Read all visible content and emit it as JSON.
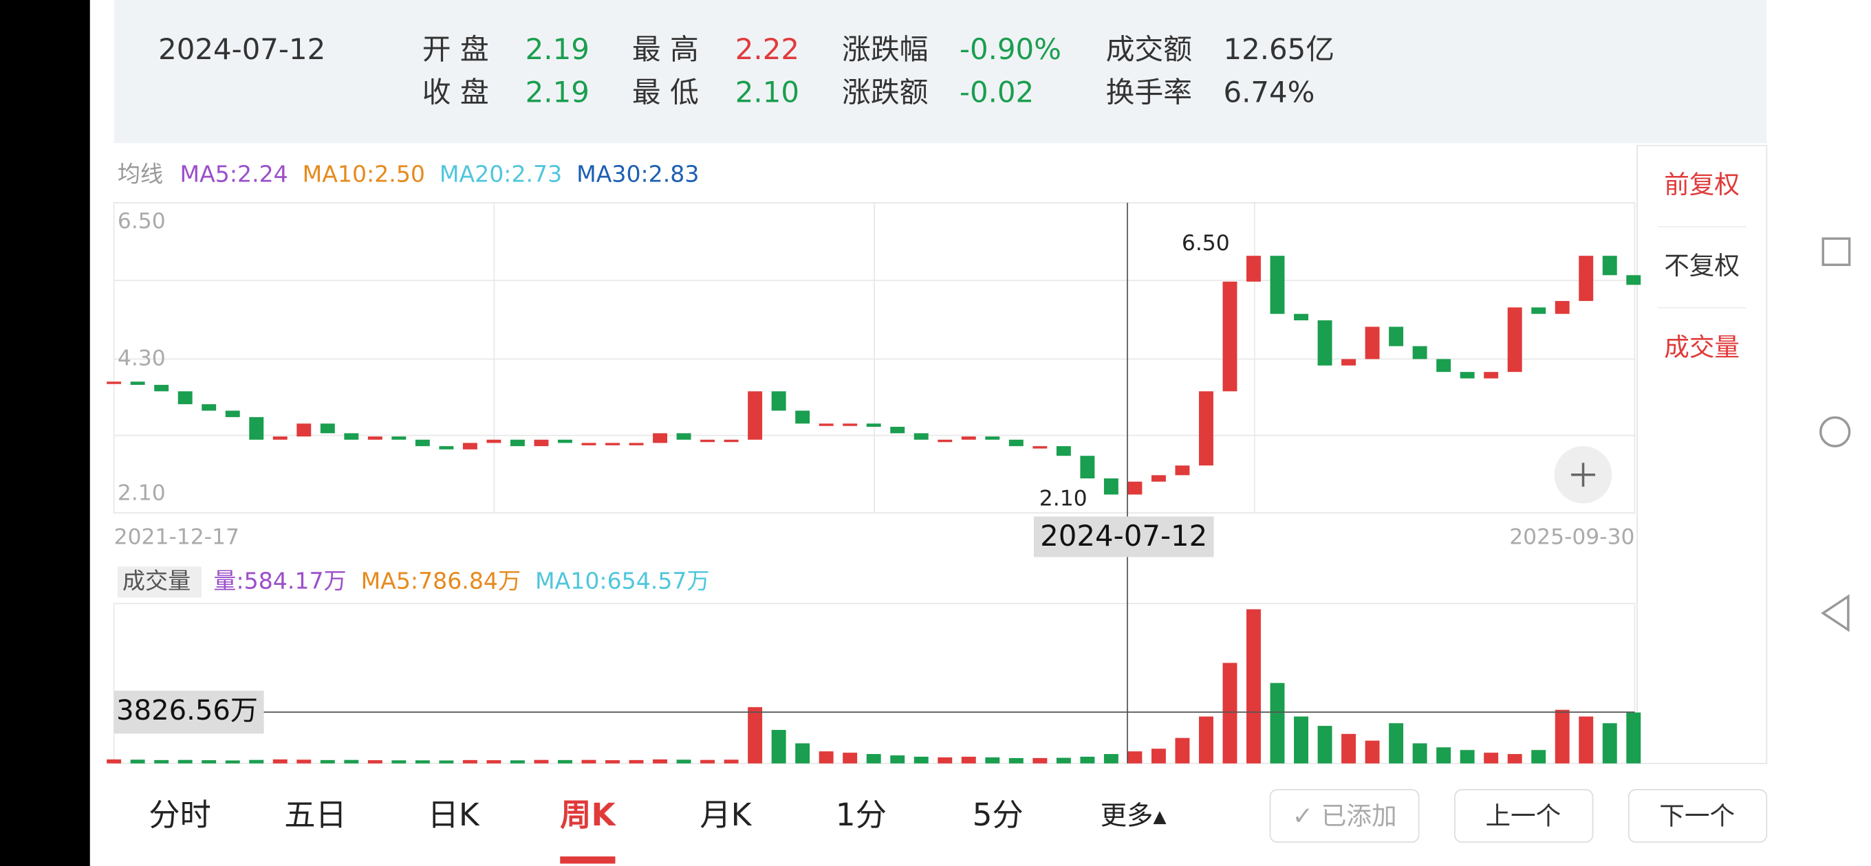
{
  "header": {
    "date": "2024-07-12",
    "stats": [
      {
        "label": "开 盘",
        "value": "2.19",
        "tone": "down"
      },
      {
        "label": "最 高",
        "value": "2.22",
        "tone": "up"
      },
      {
        "label": "涨跌幅",
        "value": "-0.90%",
        "tone": "down"
      },
      {
        "label": "成交额",
        "value": "12.65亿",
        "tone": "plain"
      },
      {
        "label": "收 盘",
        "value": "2.19",
        "tone": "down"
      },
      {
        "label": "最 低",
        "value": "2.10",
        "tone": "down"
      },
      {
        "label": "涨跌额",
        "value": "-0.02",
        "tone": "down"
      },
      {
        "label": "换手率",
        "value": "6.74%",
        "tone": "plain"
      }
    ]
  },
  "ma_legend": {
    "title": "均线",
    "items": [
      {
        "text": "MA5:2.24",
        "color": "#9b4fc9"
      },
      {
        "text": "MA10:2.50",
        "color": "#e68a1e"
      },
      {
        "text": "MA20:2.73",
        "color": "#4fc6dc"
      },
      {
        "text": "MA30:2.83",
        "color": "#1d5fb3"
      }
    ]
  },
  "vol_legend": {
    "title": "成交量",
    "items": [
      {
        "text": "量:584.17万",
        "color": "#9b4fc9"
      },
      {
        "text": "MA5:786.84万",
        "color": "#e68a1e"
      },
      {
        "text": "MA10:654.57万",
        "color": "#4fc6dc"
      }
    ]
  },
  "chart_data": {
    "type": "candlestick",
    "ylim": [
      2.1,
      6.5
    ],
    "yticks": [
      {
        "value": 6.5,
        "label": "6.50"
      },
      {
        "value": 4.3,
        "label": "4.30"
      },
      {
        "value": 2.1,
        "label": "2.10"
      }
    ],
    "high_label": "6.50",
    "low_label": "2.10",
    "start_date": "2021-12-17",
    "end_date": "2025-09-30",
    "crosshair_date": "2024-07-12",
    "up_color": "#e03a3a",
    "down_color": "#1a9e4f",
    "closes": [
      3.95,
      3.9,
      3.8,
      3.6,
      3.5,
      3.4,
      3.05,
      3.1,
      3.3,
      3.15,
      3.05,
      3.1,
      3.05,
      2.95,
      2.9,
      3.0,
      3.05,
      2.95,
      3.05,
      3.0,
      3.0,
      3.0,
      3.0,
      3.15,
      3.05,
      3.05,
      3.05,
      3.8,
      3.5,
      3.3,
      3.3,
      3.3,
      3.25,
      3.15,
      3.05,
      3.05,
      3.1,
      3.05,
      2.95,
      2.95,
      2.8,
      2.45,
      2.2,
      2.4,
      2.5,
      2.65,
      3.8,
      5.5,
      5.9,
      5.0,
      4.9,
      4.2,
      4.3,
      4.8,
      4.5,
      4.3,
      4.1,
      4.0,
      4.1,
      5.1,
      5.0,
      5.2,
      5.9,
      5.6,
      5.45
    ],
    "volumes": [
      300,
      280,
      250,
      260,
      240,
      220,
      260,
      300,
      280,
      250,
      260,
      240,
      230,
      230,
      220,
      250,
      240,
      230,
      260,
      250,
      260,
      240,
      250,
      300,
      280,
      260,
      280,
      4200,
      2500,
      1500,
      900,
      800,
      700,
      600,
      500,
      450,
      500,
      450,
      400,
      400,
      420,
      500,
      700,
      900,
      1100,
      1900,
      3500,
      7500,
      11500,
      6000,
      3500,
      2800,
      2200,
      1700,
      3000,
      1500,
      1200,
      1000,
      800,
      700,
      1000,
      4000,
      3500,
      3000,
      3800
    ],
    "volume_ref": {
      "value": 3826.56,
      "label": "3826.56万"
    }
  },
  "side_buttons": [
    "前复权",
    "不复权",
    "成交量"
  ],
  "tabs": [
    "分时",
    "五日",
    "日K",
    "周K",
    "月K",
    "1分",
    "5分",
    "更多▴"
  ],
  "actions": [
    "✓ 已添加",
    "上一个",
    "下一个"
  ]
}
